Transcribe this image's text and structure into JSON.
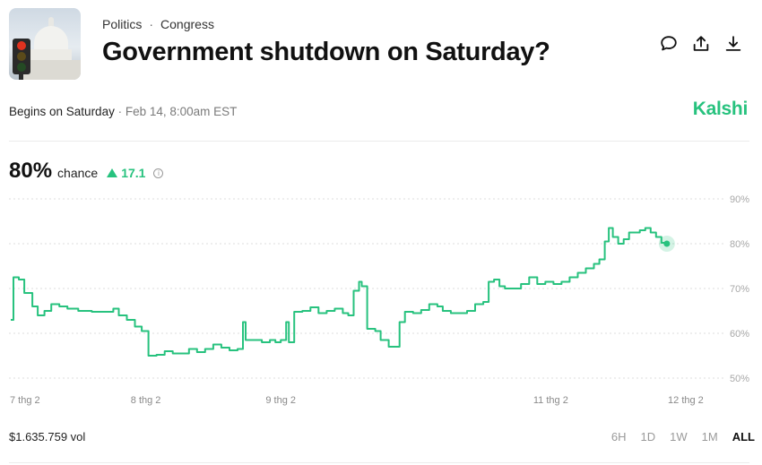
{
  "header": {
    "breadcrumbs": [
      "Politics",
      "Congress"
    ],
    "separator": "·",
    "title": "Government shutdown on Saturday?"
  },
  "actions": [
    {
      "icon": "comment-icon"
    },
    {
      "icon": "share-icon"
    },
    {
      "icon": "download-icon"
    }
  ],
  "meta": {
    "begins": "Begins on Saturday",
    "date": " · Feb 14, 8:00am EST"
  },
  "brand": "Kalshi",
  "stat": {
    "chance_value": "80%",
    "chance_label": "chance",
    "change": "17.1"
  },
  "colors": {
    "accent": "#27c27e",
    "grid": "#dddddd",
    "text": "#111111"
  },
  "chart_data": {
    "type": "line",
    "ylim": [
      50,
      90
    ],
    "y_ticks": [
      "50%",
      "60%",
      "70%",
      "80%",
      "90%"
    ],
    "x_tick_labels": [
      "7 thg 2",
      "8 thg 2",
      "9 thg 2",
      "11 thg 2",
      "12 thg 2"
    ],
    "x_tick_positions": [
      0,
      1,
      2,
      4,
      5
    ],
    "x_end": 5.1,
    "grid": true,
    "series": [
      {
        "color": "#27c27e",
        "points": [
          [
            0.0,
            63
          ],
          [
            0.02,
            72.5
          ],
          [
            0.06,
            72
          ],
          [
            0.1,
            69
          ],
          [
            0.16,
            66
          ],
          [
            0.2,
            64
          ],
          [
            0.25,
            65
          ],
          [
            0.3,
            66.5
          ],
          [
            0.36,
            66
          ],
          [
            0.42,
            65.5
          ],
          [
            0.5,
            65
          ],
          [
            0.6,
            64.8
          ],
          [
            0.7,
            64.8
          ],
          [
            0.76,
            65.5
          ],
          [
            0.8,
            64
          ],
          [
            0.86,
            63
          ],
          [
            0.92,
            61.5
          ],
          [
            0.97,
            60.5
          ],
          [
            1.0,
            60.5
          ],
          [
            1.02,
            55
          ],
          [
            1.08,
            55.2
          ],
          [
            1.14,
            56
          ],
          [
            1.2,
            55.5
          ],
          [
            1.26,
            55.5
          ],
          [
            1.32,
            56.5
          ],
          [
            1.38,
            55.8
          ],
          [
            1.44,
            56.5
          ],
          [
            1.5,
            57.5
          ],
          [
            1.56,
            56.8
          ],
          [
            1.62,
            56.2
          ],
          [
            1.68,
            56.5
          ],
          [
            1.72,
            62.5
          ],
          [
            1.74,
            58.5
          ],
          [
            1.8,
            58.5
          ],
          [
            1.86,
            58
          ],
          [
            1.92,
            58.5
          ],
          [
            1.96,
            58
          ],
          [
            2.0,
            58.5
          ],
          [
            2.04,
            62.5
          ],
          [
            2.06,
            58
          ],
          [
            2.1,
            64.8
          ],
          [
            2.16,
            65
          ],
          [
            2.22,
            65.8
          ],
          [
            2.28,
            64.5
          ],
          [
            2.34,
            65
          ],
          [
            2.4,
            65.5
          ],
          [
            2.46,
            64.5
          ],
          [
            2.5,
            64
          ],
          [
            2.54,
            69.5
          ],
          [
            2.58,
            71.5
          ],
          [
            2.6,
            70.5
          ],
          [
            2.64,
            61
          ],
          [
            2.7,
            60.5
          ],
          [
            2.74,
            58.5
          ],
          [
            2.8,
            57
          ],
          [
            2.86,
            57
          ],
          [
            2.88,
            62.5
          ],
          [
            2.92,
            64.8
          ],
          [
            2.98,
            64.5
          ],
          [
            3.04,
            65.2
          ],
          [
            3.1,
            66.5
          ],
          [
            3.16,
            66
          ],
          [
            3.2,
            65
          ],
          [
            3.26,
            64.5
          ],
          [
            3.32,
            64.5
          ],
          [
            3.38,
            65
          ],
          [
            3.44,
            66.5
          ],
          [
            3.5,
            67
          ],
          [
            3.54,
            71.5
          ],
          [
            3.58,
            72
          ],
          [
            3.62,
            70.5
          ],
          [
            3.66,
            70
          ],
          [
            3.72,
            70
          ],
          [
            3.78,
            71
          ],
          [
            3.84,
            72.5
          ],
          [
            3.9,
            71
          ],
          [
            3.96,
            71.5
          ],
          [
            4.02,
            71
          ],
          [
            4.08,
            71.5
          ],
          [
            4.14,
            72.5
          ],
          [
            4.2,
            73.5
          ],
          [
            4.26,
            74.5
          ],
          [
            4.32,
            75.5
          ],
          [
            4.36,
            76.5
          ],
          [
            4.4,
            80.5
          ],
          [
            4.43,
            83.5
          ],
          [
            4.46,
            81.5
          ],
          [
            4.5,
            80
          ],
          [
            4.54,
            81
          ],
          [
            4.58,
            82.5
          ],
          [
            4.62,
            82.5
          ],
          [
            4.66,
            83
          ],
          [
            4.7,
            83.5
          ],
          [
            4.74,
            82.5
          ],
          [
            4.78,
            81.5
          ],
          [
            4.82,
            80.2
          ],
          [
            4.86,
            80.0
          ]
        ]
      }
    ]
  },
  "footer": {
    "volume": "$1.635.759 vol",
    "ranges": [
      "6H",
      "1D",
      "1W",
      "1M",
      "ALL"
    ],
    "active_range": "ALL"
  }
}
